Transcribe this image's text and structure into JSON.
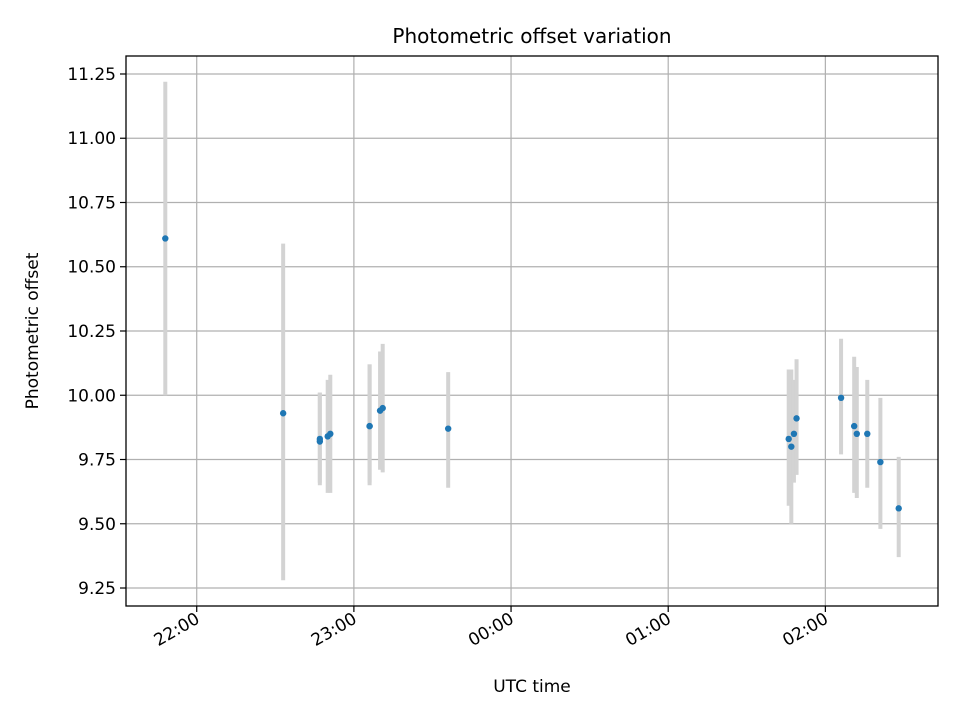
{
  "chart_data": {
    "type": "scatter",
    "title": "Photometric offset variation",
    "xlabel": "UTC time",
    "ylabel": "Photometric offset",
    "xlim": [
      "21:33",
      "02:43"
    ],
    "ylim": [
      9.18,
      11.32
    ],
    "yticks": [
      9.25,
      9.5,
      9.75,
      10.0,
      10.25,
      10.5,
      10.75,
      11.0,
      11.25
    ],
    "ytick_labels": [
      "9.25",
      "9.50",
      "9.75",
      "10.00",
      "10.25",
      "10.50",
      "10.75",
      "11.00",
      "11.25"
    ],
    "xticks": [
      "22:00",
      "23:00",
      "00:00",
      "01:00",
      "02:00"
    ],
    "xtick_labels": [
      "22:00",
      "23:00",
      "00:00",
      "01:00",
      "02:00"
    ],
    "grid": true,
    "colors": {
      "point": "#1f77b4",
      "error_bar": "#d3d3d3"
    },
    "series": [
      {
        "points": [
          {
            "x": "21:48",
            "y": 10.61,
            "ylow": 10.0,
            "yhigh": 11.22
          },
          {
            "x": "22:33",
            "y": 9.93,
            "ylow": 9.28,
            "yhigh": 10.59
          },
          {
            "x": "22:47",
            "y": 9.82,
            "ylow": 9.65,
            "yhigh": 10.01
          },
          {
            "x": "22:47",
            "y": 9.83,
            "ylow": 9.66,
            "yhigh": 10.01
          },
          {
            "x": "22:50",
            "y": 9.84,
            "ylow": 9.62,
            "yhigh": 10.06
          },
          {
            "x": "22:51",
            "y": 9.85,
            "ylow": 9.62,
            "yhigh": 10.08
          },
          {
            "x": "23:06",
            "y": 9.88,
            "ylow": 9.65,
            "yhigh": 10.12
          },
          {
            "x": "23:06",
            "y": 9.88,
            "ylow": 9.66,
            "yhigh": 10.12
          },
          {
            "x": "23:10",
            "y": 9.94,
            "ylow": 9.71,
            "yhigh": 10.17
          },
          {
            "x": "23:11",
            "y": 9.95,
            "ylow": 9.7,
            "yhigh": 10.2
          },
          {
            "x": "23:36",
            "y": 9.87,
            "ylow": 9.64,
            "yhigh": 10.09
          },
          {
            "x": "01:46",
            "y": 9.83,
            "ylow": 9.57,
            "yhigh": 10.1
          },
          {
            "x": "01:47",
            "y": 9.8,
            "ylow": 9.5,
            "yhigh": 10.1
          },
          {
            "x": "01:48",
            "y": 9.85,
            "ylow": 9.66,
            "yhigh": 10.06
          },
          {
            "x": "01:49",
            "y": 9.91,
            "ylow": 9.69,
            "yhigh": 10.14
          },
          {
            "x": "02:06",
            "y": 9.99,
            "ylow": 9.77,
            "yhigh": 10.22
          },
          {
            "x": "02:11",
            "y": 9.88,
            "ylow": 9.62,
            "yhigh": 10.15
          },
          {
            "x": "02:12",
            "y": 9.85,
            "ylow": 9.6,
            "yhigh": 10.11
          },
          {
            "x": "02:16",
            "y": 9.85,
            "ylow": 9.64,
            "yhigh": 10.06
          },
          {
            "x": "02:21",
            "y": 9.74,
            "ylow": 9.48,
            "yhigh": 9.99
          },
          {
            "x": "02:28",
            "y": 9.56,
            "ylow": 9.37,
            "yhigh": 9.76
          }
        ]
      }
    ]
  }
}
